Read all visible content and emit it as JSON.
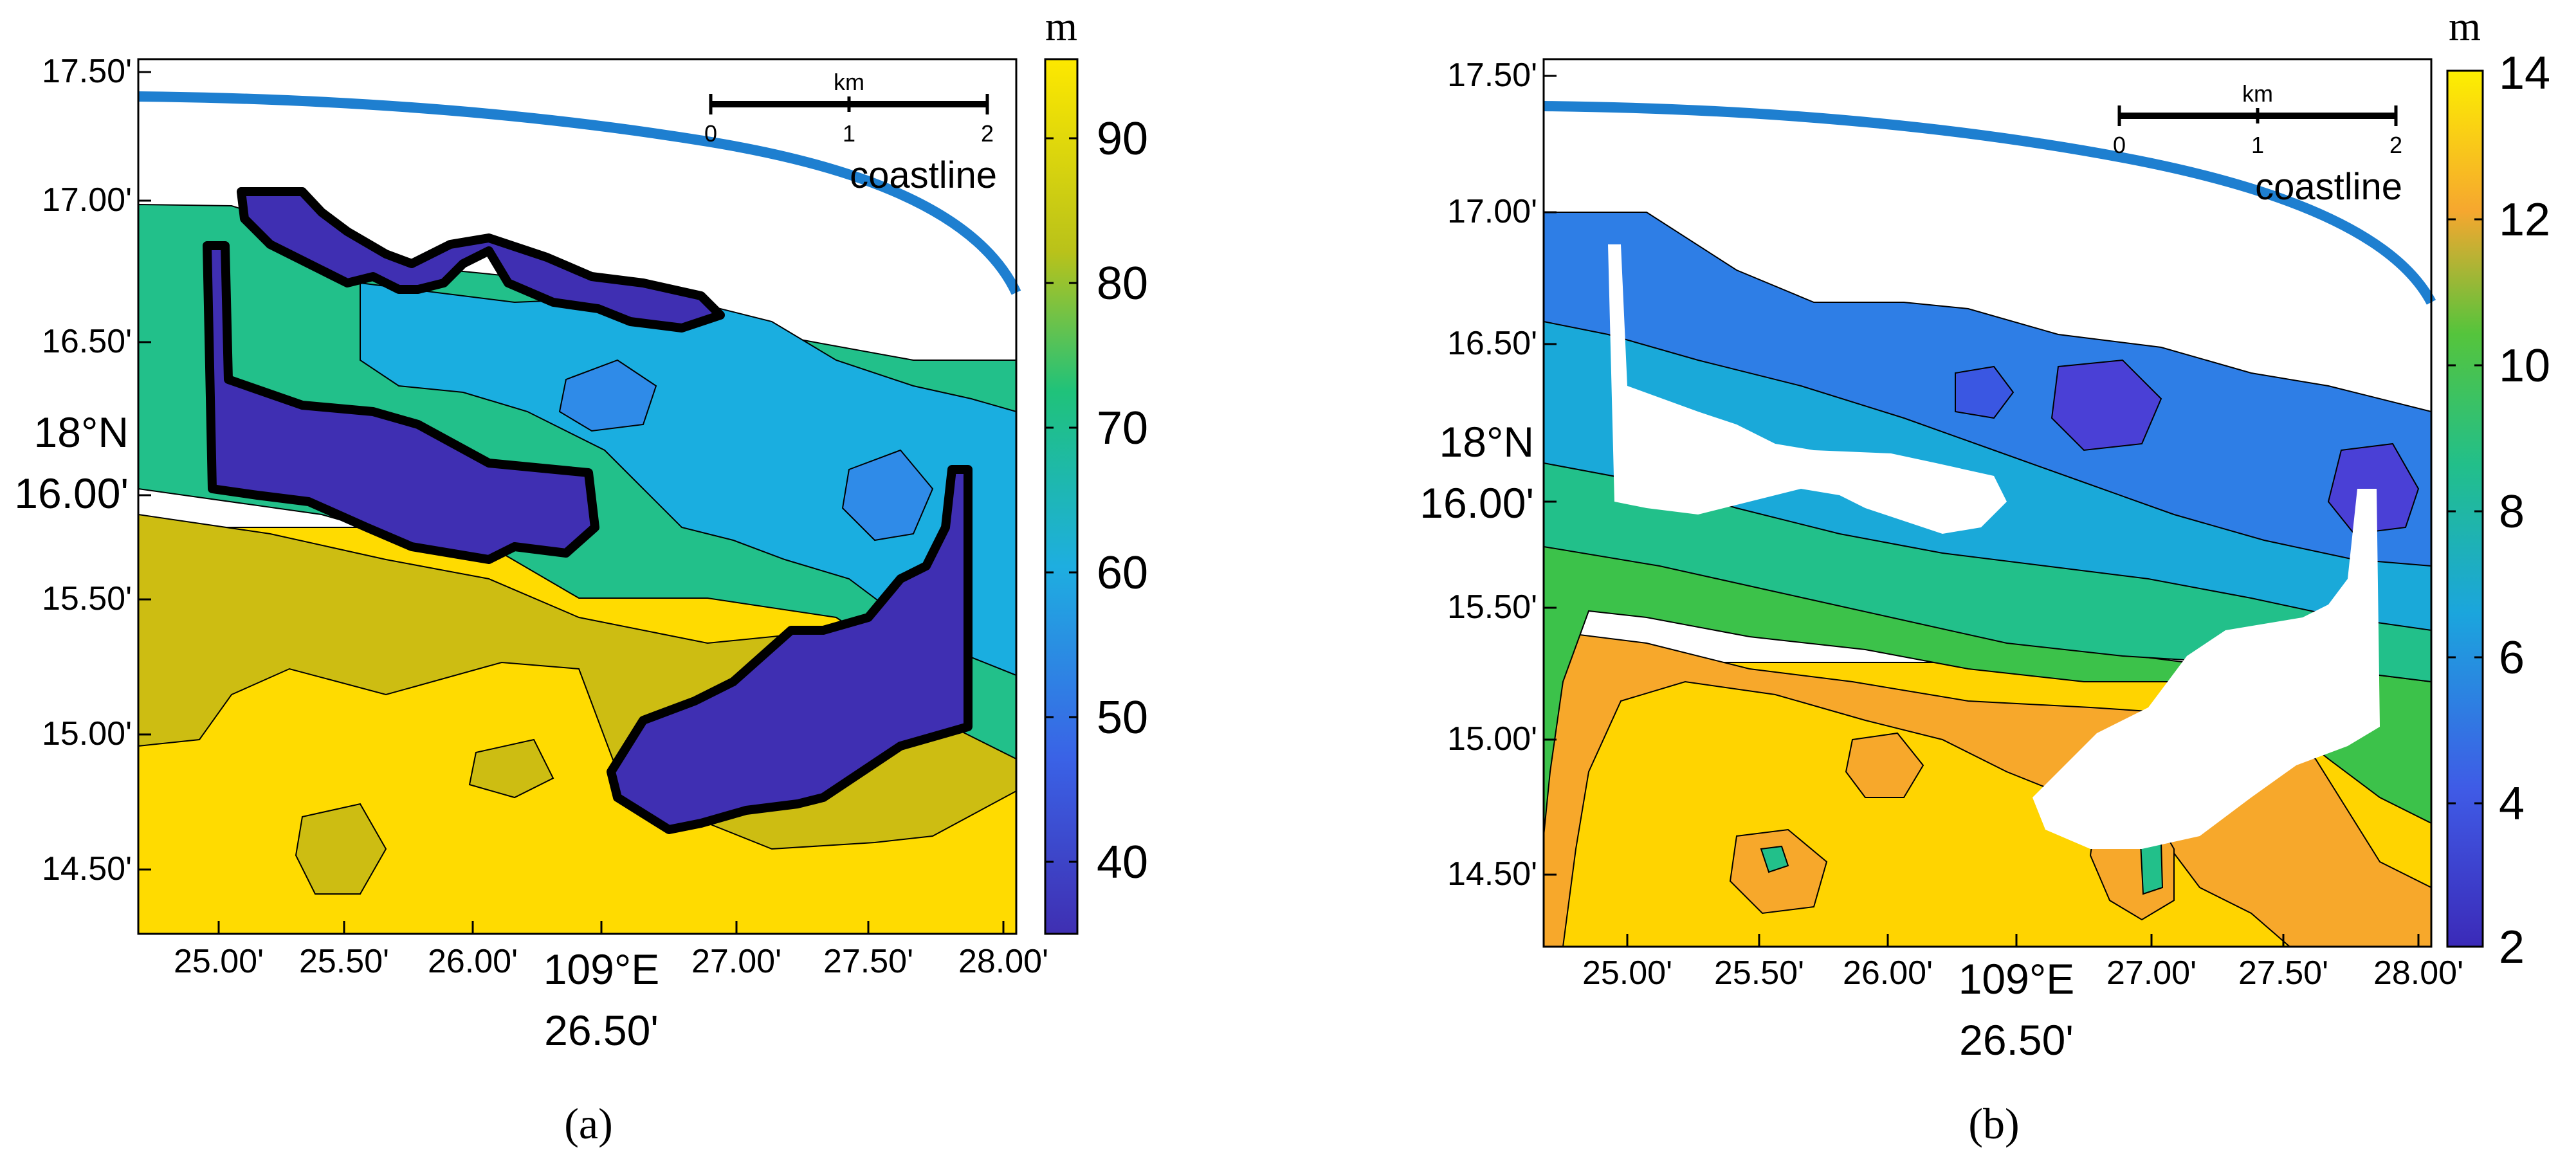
{
  "panels": [
    {
      "caption": "(a)",
      "unit": "m",
      "y_ticks": [
        "17.50'",
        "17.00'",
        "16.50'",
        "16.00'",
        "15.50'",
        "15.00'",
        "14.50'"
      ],
      "y_degree": "18°N",
      "x_ticks": [
        "25.00'",
        "25.50'",
        "26.00'",
        "26.50'",
        "27.00'",
        "27.50'",
        "28.00'"
      ],
      "x_degree": "109°E",
      "colorbar_ticks": [
        "90",
        "80",
        "70",
        "60",
        "50",
        "40"
      ],
      "colorbar_range": [
        35,
        95
      ],
      "scale_unit": "km",
      "scale_ticks": [
        "0",
        "1",
        "2"
      ],
      "coastline_label": "coastline",
      "colors": {
        "deep_purple": "#3f2fb2",
        "teal": "#22c08a",
        "cyan": "#1aaee0",
        "blue": "#2f8be8",
        "olive": "#cdbd12",
        "yellow": "#ffdb00"
      }
    },
    {
      "caption": "(b)",
      "unit": "m",
      "y_ticks": [
        "17.50'",
        "17.00'",
        "16.50'",
        "16.00'",
        "15.50'",
        "15.00'",
        "14.50'"
      ],
      "y_degree": "18°N",
      "x_ticks": [
        "25.00'",
        "25.50'",
        "26.00'",
        "26.50'",
        "27.00'",
        "27.50'",
        "28.00'"
      ],
      "x_degree": "109°E",
      "colorbar_ticks": [
        "14",
        "12",
        "10",
        "8",
        "6",
        "4",
        "2"
      ],
      "colorbar_range": [
        2,
        14
      ],
      "scale_unit": "km",
      "scale_ticks": [
        "0",
        "1",
        "2"
      ],
      "coastline_label": "coastline",
      "colors": {
        "blue": "#2e7ee6",
        "cyan": "#1aa9d9",
        "purple": "#4a40d6",
        "green": "#3cc24a",
        "orange": "#f7a82b",
        "yellow": "#ffd400"
      }
    }
  ]
}
